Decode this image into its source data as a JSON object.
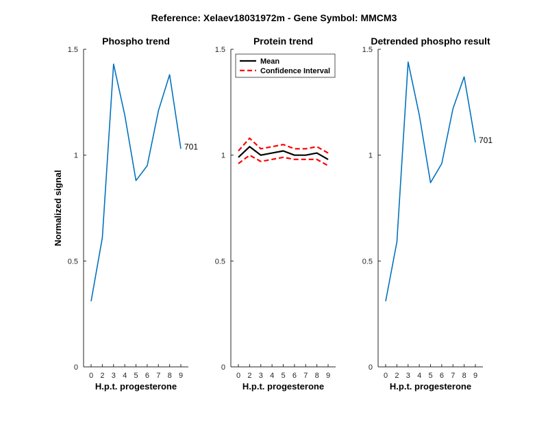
{
  "figure_title": "Reference:  Xelaev18031972m - Gene Symbol:  MMCM3",
  "colors": {
    "trend": "#0072BD",
    "mean": "#000000",
    "ci": "#FF0000",
    "axis": "#262626"
  },
  "chart_data": [
    {
      "type": "line",
      "title": "Phospho trend",
      "xlabel": "H.p.t. progesterone",
      "ylabel": "Normalized signal",
      "x": [
        0,
        2,
        3,
        4,
        5,
        6,
        7,
        8,
        9
      ],
      "x_tick_labels": [
        "0",
        "2",
        "3",
        "4",
        "5",
        "6",
        "7",
        "8",
        "9"
      ],
      "ylim": [
        0,
        1.5
      ],
      "y_ticks": [
        0,
        0.5,
        1,
        1.5
      ],
      "y_tick_labels": [
        "0",
        "0.5",
        "1",
        "1.5"
      ],
      "series": [
        {
          "values": [
            0.31,
            0.61,
            1.43,
            1.19,
            0.88,
            0.95,
            1.21,
            1.38,
            1.03
          ]
        }
      ],
      "annotation": "701"
    },
    {
      "type": "line",
      "title": "Protein trend",
      "xlabel": "H.p.t. progesterone",
      "ylabel": "",
      "x": [
        0,
        2,
        3,
        4,
        5,
        6,
        7,
        8,
        9
      ],
      "x_tick_labels": [
        "0",
        "2",
        "3",
        "4",
        "5",
        "6",
        "7",
        "8",
        "9"
      ],
      "ylim": [
        0,
        1.5
      ],
      "y_ticks": [
        0,
        0.5,
        1,
        1.5
      ],
      "y_tick_labels": [
        "0",
        "0.5",
        "1",
        "1.5"
      ],
      "legend": {
        "position": "top",
        "entries": [
          "Mean",
          "Confidence Interval"
        ]
      },
      "series": [
        {
          "name": "Mean",
          "values": [
            0.99,
            1.04,
            1.0,
            1.01,
            1.02,
            1.0,
            1.0,
            1.01,
            0.98
          ]
        },
        {
          "name": "Confidence Interval",
          "values": [
            1.02,
            1.08,
            1.03,
            1.04,
            1.05,
            1.03,
            1.03,
            1.04,
            1.01
          ]
        },
        {
          "name": "Confidence Interval",
          "values": [
            0.96,
            1.0,
            0.97,
            0.98,
            0.99,
            0.98,
            0.98,
            0.98,
            0.95
          ]
        }
      ]
    },
    {
      "type": "line",
      "title": "Detrended phospho result",
      "xlabel": "H.p.t. progesterone",
      "ylabel": "",
      "x": [
        0,
        2,
        3,
        4,
        5,
        6,
        7,
        8,
        9
      ],
      "x_tick_labels": [
        "0",
        "2",
        "3",
        "4",
        "5",
        "6",
        "7",
        "8",
        "9"
      ],
      "ylim": [
        0,
        1.5
      ],
      "y_ticks": [
        0,
        0.5,
        1,
        1.5
      ],
      "y_tick_labels": [
        "0",
        "0.5",
        "1",
        "1.5"
      ],
      "series": [
        {
          "values": [
            0.31,
            0.59,
            1.44,
            1.19,
            0.87,
            0.96,
            1.22,
            1.37,
            1.06
          ]
        }
      ],
      "annotation": "701"
    }
  ]
}
